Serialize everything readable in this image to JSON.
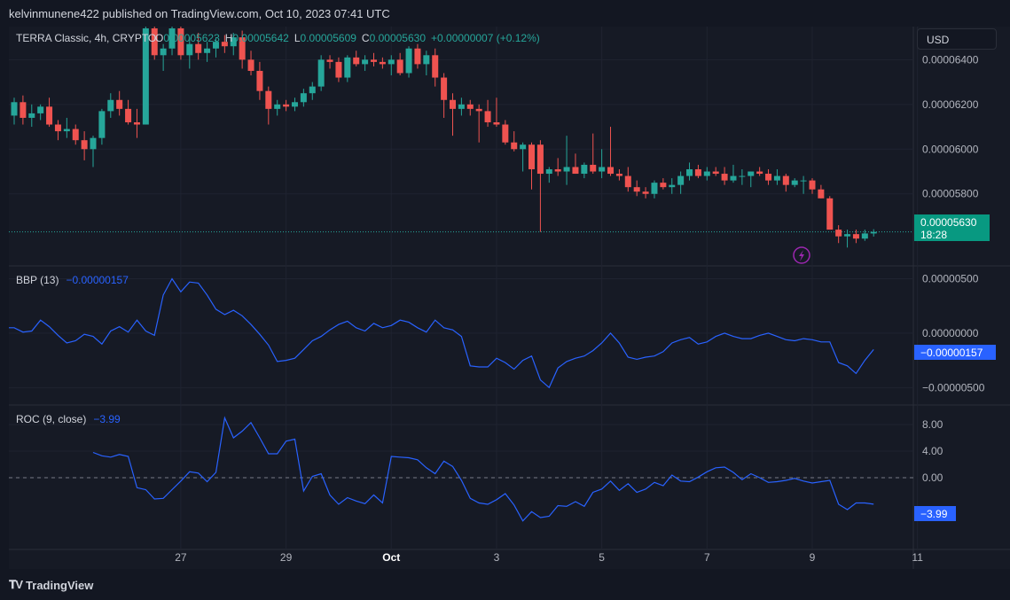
{
  "publisher": "kelvinmunene422 published on TradingView.com, Oct 10, 2023 07:41 UTC",
  "currency_button": "USD",
  "footer_logo": "TradingView",
  "colors": {
    "up": "#26a69a",
    "down": "#ef5350",
    "line": "#2962ff",
    "bg": "#161a25"
  },
  "chart_data": [
    {
      "type": "candlestick",
      "legend": {
        "symbol": "TERRA Classic, 4h, CRYPTO",
        "o_label": "O",
        "o": "0.00005623",
        "h_label": "H",
        "h": "0.00005642",
        "l_label": "L",
        "l": "0.00005609",
        "c_label": "C",
        "c": "0.00005630",
        "change": "+0.00000007 (+0.12%)"
      },
      "last_price_label": "0.00005630",
      "countdown": "18:28",
      "y_ticks": [
        "0.00006400",
        "0.00006200",
        "0.00006000",
        "0.00005800"
      ],
      "y_tick_values": [
        6.4e-05,
        6.2e-05,
        6e-05,
        5.8e-05
      ],
      "ylim": [
        5.478e-05,
        6.548e-05
      ],
      "last_price": 5.63e-05,
      "x_ticks": [
        "27",
        "29",
        "Oct",
        "3",
        "5",
        "7",
        "9",
        "11"
      ],
      "x_tick_index": [
        19,
        31,
        43,
        55,
        67,
        79,
        91,
        103
      ],
      "candles": [
        [
          6.15e-05,
          6.23e-05,
          6.11e-05,
          6.21e-05
        ],
        [
          6.21e-05,
          6.24e-05,
          6.11e-05,
          6.14e-05
        ],
        [
          6.14e-05,
          6.2e-05,
          6.1e-05,
          6.16e-05
        ],
        [
          6.16e-05,
          6.2e-05,
          6.13e-05,
          6.19e-05
        ],
        [
          6.19e-05,
          6.23e-05,
          6.1e-05,
          6.11e-05
        ],
        [
          6.11e-05,
          6.13e-05,
          6.04e-05,
          6.08e-05
        ],
        [
          6.08e-05,
          6.14e-05,
          6.05e-05,
          6.09e-05
        ],
        [
          6.09e-05,
          6.11e-05,
          6.02e-05,
          6.04e-05
        ],
        [
          6.04e-05,
          6.08e-05,
          5.95e-05,
          6e-05
        ],
        [
          6e-05,
          6.06e-05,
          5.92e-05,
          6.05e-05
        ],
        [
          6.05e-05,
          6.18e-05,
          6.02e-05,
          6.17e-05
        ],
        [
          6.17e-05,
          6.25e-05,
          6.14e-05,
          6.22e-05
        ],
        [
          6.22e-05,
          6.26e-05,
          6.15e-05,
          6.18e-05
        ],
        [
          6.18e-05,
          6.22e-05,
          6.11e-05,
          6.12e-05
        ],
        [
          6.12e-05,
          6.18e-05,
          6.05e-05,
          6.11e-05
        ],
        [
          6.11e-05,
          6.56e-05,
          6.11e-05,
          6.54e-05
        ],
        [
          6.54e-05,
          6.56e-05,
          6.4e-05,
          6.42e-05
        ],
        [
          6.42e-05,
          6.47e-05,
          6.35e-05,
          6.45e-05
        ],
        [
          6.45e-05,
          6.56e-05,
          6.42e-05,
          6.54e-05
        ],
        [
          6.54e-05,
          6.56e-05,
          6.4e-05,
          6.42e-05
        ],
        [
          6.42e-05,
          6.5e-05,
          6.36e-05,
          6.47e-05
        ],
        [
          6.47e-05,
          6.52e-05,
          6.4e-05,
          6.43e-05
        ],
        [
          6.43e-05,
          6.48e-05,
          6.39e-05,
          6.45e-05
        ],
        [
          6.45e-05,
          6.5e-05,
          6.41e-05,
          6.48e-05
        ],
        [
          6.48e-05,
          6.51e-05,
          6.43e-05,
          6.46e-05
        ],
        [
          6.46e-05,
          6.52e-05,
          6.42e-05,
          6.5e-05
        ],
        [
          6.5e-05,
          6.53e-05,
          6.36e-05,
          6.4e-05
        ],
        [
          6.4e-05,
          6.44e-05,
          6.33e-05,
          6.35e-05
        ],
        [
          6.35e-05,
          6.39e-05,
          6.22e-05,
          6.26e-05
        ],
        [
          6.26e-05,
          6.28e-05,
          6.11e-05,
          6.18e-05
        ],
        [
          6.18e-05,
          6.22e-05,
          6.15e-05,
          6.2e-05
        ],
        [
          6.2e-05,
          6.22e-05,
          6.17e-05,
          6.19e-05
        ],
        [
          6.19e-05,
          6.23e-05,
          6.17e-05,
          6.21e-05
        ],
        [
          6.21e-05,
          6.27e-05,
          6.19e-05,
          6.25e-05
        ],
        [
          6.25e-05,
          6.3e-05,
          6.22e-05,
          6.28e-05
        ],
        [
          6.28e-05,
          6.42e-05,
          6.26e-05,
          6.4e-05
        ],
        [
          6.4e-05,
          6.42e-05,
          6.36e-05,
          6.39e-05
        ],
        [
          6.39e-05,
          6.41e-05,
          6.3e-05,
          6.32e-05
        ],
        [
          6.32e-05,
          6.42e-05,
          6.3e-05,
          6.41e-05
        ],
        [
          6.41e-05,
          6.44e-05,
          6.37e-05,
          6.38e-05
        ],
        [
          6.38e-05,
          6.42e-05,
          6.35e-05,
          6.4e-05
        ],
        [
          6.4e-05,
          6.43e-05,
          6.37e-05,
          6.39e-05
        ],
        [
          6.39e-05,
          6.41e-05,
          6.36e-05,
          6.38e-05
        ],
        [
          6.38e-05,
          6.42e-05,
          6.33e-05,
          6.4e-05
        ],
        [
          6.4e-05,
          6.43e-05,
          6.33e-05,
          6.34e-05
        ],
        [
          6.34e-05,
          6.46e-05,
          6.32e-05,
          6.45e-05
        ],
        [
          6.45e-05,
          6.47e-05,
          6.36e-05,
          6.38e-05
        ],
        [
          6.38e-05,
          6.44e-05,
          6.33e-05,
          6.42e-05
        ],
        [
          6.42e-05,
          6.45e-05,
          6.28e-05,
          6.32e-05
        ],
        [
          6.32e-05,
          6.34e-05,
          6.14e-05,
          6.22e-05
        ],
        [
          6.22e-05,
          6.25e-05,
          6.06e-05,
          6.18e-05
        ],
        [
          6.18e-05,
          6.23e-05,
          6.15e-05,
          6.2e-05
        ],
        [
          6.2e-05,
          6.22e-05,
          6.15e-05,
          6.18e-05
        ],
        [
          6.18e-05,
          6.2e-05,
          6.03e-05,
          6.17e-05
        ],
        [
          6.17e-05,
          6.22e-05,
          6.1e-05,
          6.12e-05
        ],
        [
          6.12e-05,
          6.23e-05,
          6.1e-05,
          6.11e-05
        ],
        [
          6.11e-05,
          6.13e-05,
          6.02e-05,
          6.03e-05
        ],
        [
          6.03e-05,
          6.08e-05,
          5.99e-05,
          6e-05
        ],
        [
          6e-05,
          6.03e-05,
          5.9e-05,
          6.02e-05
        ],
        [
          6.02e-05,
          6.03e-05,
          5.82e-05,
          5.91e-05
        ],
        [
          6.02e-05,
          6.04e-05,
          5.63e-05,
          5.89e-05
        ],
        [
          5.89e-05,
          5.92e-05,
          5.85e-05,
          5.91e-05
        ],
        [
          5.91e-05,
          5.96e-05,
          5.88e-05,
          5.9e-05
        ],
        [
          5.9e-05,
          6.06e-05,
          5.84e-05,
          5.92e-05
        ],
        [
          5.92e-05,
          5.98e-05,
          5.89e-05,
          5.89e-05
        ],
        [
          5.89e-05,
          5.94e-05,
          5.87e-05,
          5.93e-05
        ],
        [
          5.93e-05,
          6.07e-05,
          5.89e-05,
          5.9e-05
        ],
        [
          5.9e-05,
          6e-05,
          5.87e-05,
          5.92e-05
        ],
        [
          5.92e-05,
          6.1e-05,
          5.88e-05,
          5.89e-05
        ],
        [
          5.89e-05,
          5.91e-05,
          5.86e-05,
          5.88e-05
        ],
        [
          5.88e-05,
          5.92e-05,
          5.81e-05,
          5.83e-05
        ],
        [
          5.83e-05,
          5.86e-05,
          5.79e-05,
          5.81e-05
        ],
        [
          5.81e-05,
          5.83e-05,
          5.78e-05,
          5.8e-05
        ],
        [
          5.8e-05,
          5.86e-05,
          5.78e-05,
          5.85e-05
        ],
        [
          5.85e-05,
          5.87e-05,
          5.82e-05,
          5.83e-05
        ],
        [
          5.83e-05,
          5.87e-05,
          5.8e-05,
          5.84e-05
        ],
        [
          5.84e-05,
          5.9e-05,
          5.8e-05,
          5.88e-05
        ],
        [
          5.88e-05,
          5.94e-05,
          5.86e-05,
          5.91e-05
        ],
        [
          5.91e-05,
          5.93e-05,
          5.87e-05,
          5.88e-05
        ],
        [
          5.88e-05,
          5.92e-05,
          5.86e-05,
          5.9e-05
        ],
        [
          5.9e-05,
          5.92e-05,
          5.88e-05,
          5.89e-05
        ],
        [
          5.89e-05,
          5.92e-05,
          5.84e-05,
          5.86e-05
        ],
        [
          5.86e-05,
          5.93e-05,
          5.85e-05,
          5.88e-05
        ],
        [
          5.88e-05,
          5.91e-05,
          5.84e-05,
          5.88e-05
        ],
        [
          5.88e-05,
          5.9e-05,
          5.83e-05,
          5.9e-05
        ],
        [
          5.9e-05,
          5.92e-05,
          5.88e-05,
          5.89e-05
        ],
        [
          5.89e-05,
          5.91e-05,
          5.84e-05,
          5.86e-05
        ],
        [
          5.86e-05,
          5.91e-05,
          5.84e-05,
          5.88e-05
        ],
        [
          5.88e-05,
          5.89e-05,
          5.81e-05,
          5.84e-05
        ],
        [
          5.84e-05,
          5.87e-05,
          5.83e-05,
          5.86e-05
        ],
        [
          5.86e-05,
          5.88e-05,
          5.8e-05,
          5.86e-05
        ],
        [
          5.86e-05,
          5.87e-05,
          5.8e-05,
          5.82e-05
        ],
        [
          5.82e-05,
          5.84e-05,
          5.78e-05,
          5.78e-05
        ],
        [
          5.78e-05,
          5.79e-05,
          5.65e-05,
          5.64e-05
        ],
        [
          5.64e-05,
          5.66e-05,
          5.58e-05,
          5.61e-05
        ],
        [
          5.61e-05,
          5.64e-05,
          5.56e-05,
          5.62e-05
        ],
        [
          5.62e-05,
          5.64e-05,
          5.58e-05,
          5.6e-05
        ],
        [
          5.6e-05,
          5.64e-05,
          5.59e-05,
          5.623e-05
        ],
        [
          5.623e-05,
          5.642e-05,
          5.609e-05,
          5.63e-05
        ]
      ]
    },
    {
      "type": "line",
      "name": "BBP (13)",
      "legend_value": "−0.00000157",
      "last_value_label": "−0.00000157",
      "y_ticks": [
        "0.00000500",
        "0.00000000",
        "−0.00000500"
      ],
      "y_tick_values": [
        5e-06,
        0,
        -5e-06
      ],
      "ylim": [
        -6.6e-06,
        6.1e-06
      ],
      "values": [
        5e-07,
        5e-07,
        1e-07,
        2e-07,
        1.2e-06,
        6e-07,
        -2e-07,
        -9e-07,
        -7e-07,
        -1e-07,
        -3e-07,
        -1e-06,
        2e-07,
        6e-07,
        1e-07,
        1.2e-06,
        2e-07,
        -2e-07,
        3.5e-06,
        5e-06,
        3.8e-06,
        4.7e-06,
        4.6e-06,
        3.5e-06,
        2.2e-06,
        1.7e-06,
        2.1e-06,
        1.6e-06,
        8e-07,
        -1e-07,
        -1.1e-06,
        -2.6e-06,
        -2.5e-06,
        -2.3e-06,
        -1.5e-06,
        -7e-07,
        -3e-07,
        3e-07,
        8e-07,
        1.1e-06,
        5e-07,
        2e-07,
        9e-07,
        5e-07,
        7e-07,
        1.2e-06,
        1e-06,
        5e-07,
        1e-07,
        1.2e-06,
        5e-07,
        3e-07,
        -3e-07,
        -3e-06,
        -3.1e-06,
        -3.1e-06,
        -2.3e-06,
        -2.7e-06,
        -3.3e-06,
        -2.5e-06,
        -2.1e-06,
        -4.3e-06,
        -5e-06,
        -3.2e-06,
        -2.6e-06,
        -2.3e-06,
        -2.1e-06,
        -1.6e-06,
        -9e-07,
        0,
        -9e-07,
        -2.2e-06,
        -2.4e-06,
        -2.2e-06,
        -2.1e-06,
        -1.7e-06,
        -9e-07,
        -6e-07,
        -4e-07,
        -1e-06,
        -8e-07,
        -3e-07,
        0,
        -3e-07,
        -5e-07,
        -5e-07,
        -2e-07,
        0,
        -3e-07,
        -6e-07,
        -7e-07,
        -5e-07,
        -6e-07,
        -8e-07,
        -8e-07,
        -2.7e-06,
        -3e-06,
        -3.7e-06,
        -2.5e-06,
        -1.5e-06
      ]
    },
    {
      "type": "line",
      "name": "ROC (9, close)",
      "legend_value": "−3.99",
      "last_value_label": "−3.99",
      "y_ticks": [
        "8.00",
        "4.00",
        "0.00"
      ],
      "y_tick_values": [
        8,
        4,
        0
      ],
      "ylim": [
        -10.8,
        10.8
      ],
      "zero_line": 0,
      "values": [
        3.8,
        3.3,
        3.1,
        3.5,
        3.2,
        -1.5,
        -1.8,
        -3.2,
        -3.1,
        -1.8,
        -0.5,
        0.9,
        0.7,
        -0.6,
        0.8,
        9,
        6,
        7,
        8.3,
        6,
        3.6,
        3.6,
        5.5,
        5.8,
        -2,
        0.2,
        0.6,
        -2.6,
        -4,
        -3,
        -3.5,
        -3.9,
        -2.6,
        -3.8,
        3.2,
        3.1,
        3,
        2.7,
        1.5,
        0.6,
        2.5,
        1.7,
        -0.4,
        -3.1,
        -3.8,
        -4,
        -3.3,
        -2.4,
        -4.1,
        -6.5,
        -5.1,
        -6,
        -5.8,
        -4.2,
        -4.3,
        -3.6,
        -4.3,
        -2.2,
        -1.7,
        -0.5,
        -1.9,
        -0.9,
        -2.2,
        -1.7,
        -0.7,
        -1.2,
        0.4,
        -0.5,
        -0.6,
        0.1,
        0.9,
        1.5,
        1.6,
        0.8,
        -0.3,
        0.6,
        0,
        -0.7,
        -0.6,
        -0.4,
        -0.1,
        -0.5,
        -0.8,
        -0.6,
        -0.4,
        -4,
        -4.8,
        -3.8,
        -3.8,
        -3.99
      ]
    }
  ]
}
